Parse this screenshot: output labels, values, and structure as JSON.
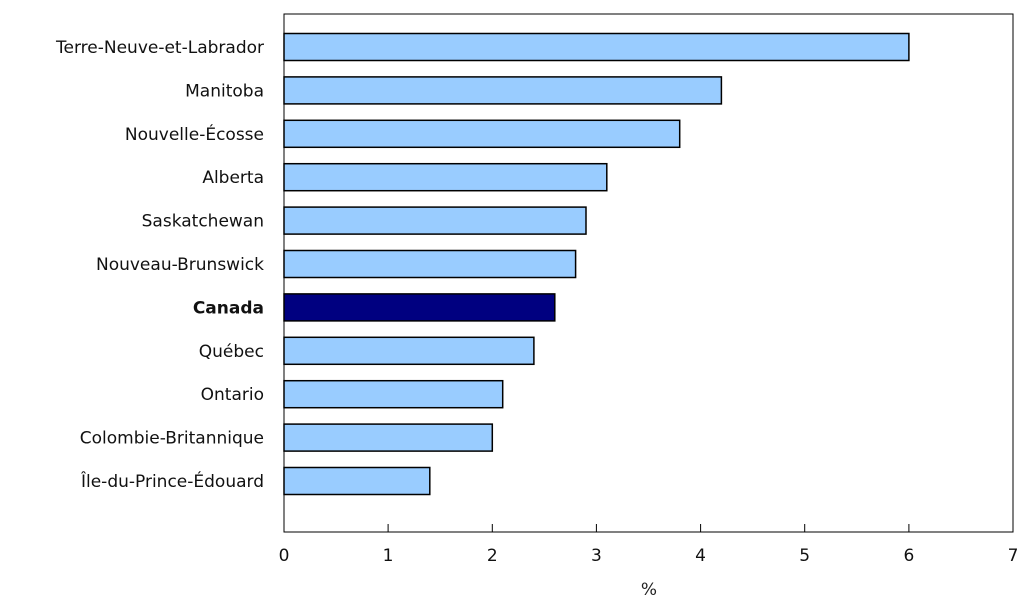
{
  "chart_data": {
    "type": "bar",
    "orientation": "horizontal",
    "categories": [
      "Terre-Neuve-et-Labrador",
      "Manitoba",
      "Nouvelle-Écosse",
      "Alberta",
      "Saskatchewan",
      "Nouveau-Brunswick",
      "Canada",
      "Québec",
      "Ontario",
      "Colombie-Britannique",
      "Île-du-Prince-Édouard"
    ],
    "values": [
      6.0,
      4.2,
      3.8,
      3.1,
      2.9,
      2.8,
      2.6,
      2.4,
      2.1,
      2.0,
      1.4
    ],
    "highlight": "Canada",
    "xlabel": "%",
    "xlim": [
      0,
      7
    ],
    "xticks": [
      "0",
      "1",
      "2",
      "3",
      "4",
      "5",
      "6",
      "7"
    ],
    "grid": false,
    "colors": {
      "bar": "#99ccff",
      "highlight": "#000080",
      "outline": "#000000",
      "axis": "#000000",
      "text": "#222222"
    }
  }
}
